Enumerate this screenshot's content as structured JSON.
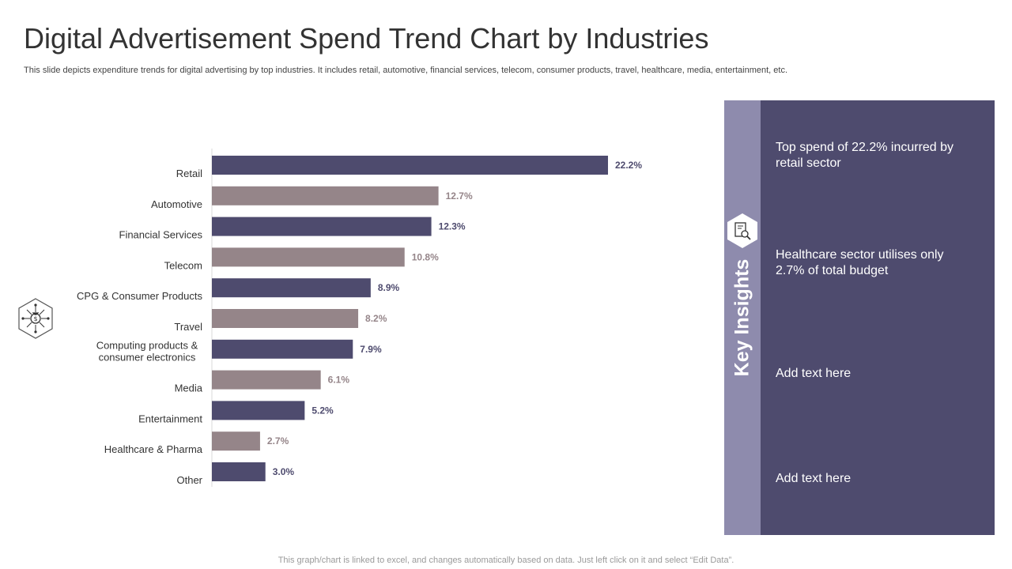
{
  "page": {
    "title": "Digital Advertisement Spend Trend Chart by Industries",
    "subtitle": "This slide depicts expenditure trends for digital advertising by top industries. It includes retail, automotive, financial services, telecom, consumer products, travel, healthcare, media, entertainment, etc.",
    "footer": "This graph/chart is linked to excel,  and changes automatically based on data. Just left click on it and select “Edit Data”."
  },
  "insights": {
    "heading": "Key Insights",
    "items": [
      "Top spend of 22.2% incurred by retail sector",
      "Healthcare sector utilises only 2.7% of total budget",
      "Add text here",
      "Add text here"
    ]
  },
  "icons": {
    "side": "money-bag-network-icon",
    "insights": "document-search-icon"
  },
  "colors": {
    "dark_bar": "#4e4b6e",
    "light_bar": "#958589",
    "panel_strip": "#8e8bad",
    "panel_body": "#4e4b6e"
  },
  "chart_data": {
    "type": "bar",
    "orientation": "horizontal",
    "title": "",
    "xlabel": "",
    "ylabel": "",
    "xlim": [
      0,
      25
    ],
    "grid": false,
    "categories": [
      "Retail",
      "Automotive",
      "Financial Services",
      "Telecom",
      "CPG & Consumer Products",
      "Travel",
      "Computing products & consumer electronics",
      "Media",
      "Entertainment",
      "Healthcare & Pharma",
      "Other"
    ],
    "category_lines": [
      [
        "Retail"
      ],
      [
        "Automotive"
      ],
      [
        "Financial Services"
      ],
      [
        "Telecom"
      ],
      [
        "CPG & Consumer Products"
      ],
      [
        "Travel"
      ],
      [
        "Computing products &",
        "consumer electronics"
      ],
      [
        "Media"
      ],
      [
        "Entertainment"
      ],
      [
        "Healthcare & Pharma"
      ],
      [
        "Other"
      ]
    ],
    "values": [
      22.2,
      12.7,
      12.3,
      10.8,
      8.9,
      8.2,
      7.9,
      6.1,
      5.2,
      2.7,
      3.0
    ],
    "labels": [
      "22.2%",
      "12.7%",
      "12.3%",
      "10.8%",
      "8.9%",
      "8.2%",
      "7.9%",
      "6.1%",
      "5.2%",
      "2.7%",
      "3.0%"
    ]
  }
}
